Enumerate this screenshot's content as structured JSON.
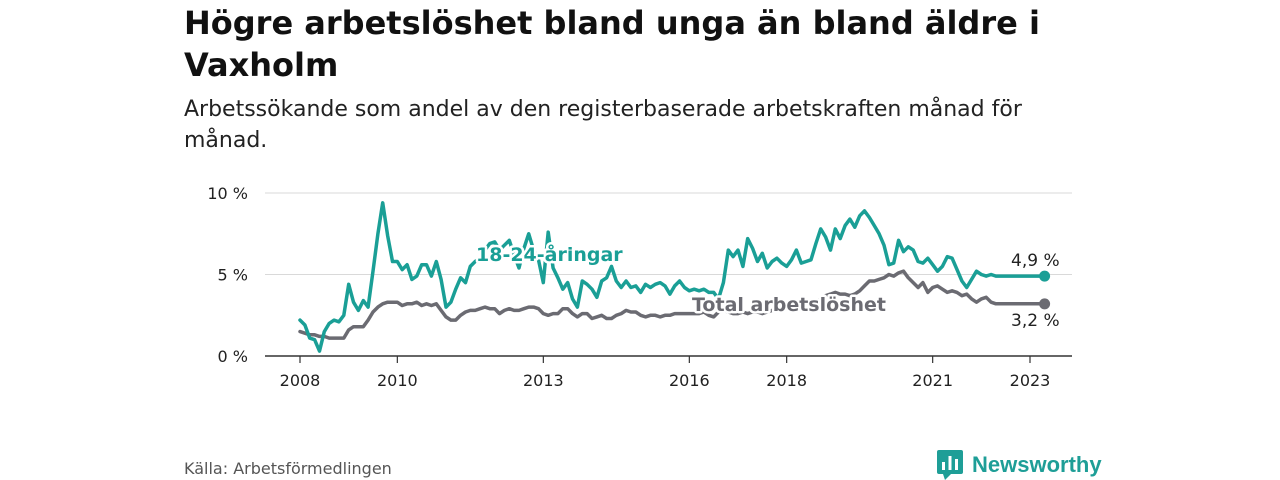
{
  "title": "Högre arbetslöshet bland unga än bland äldre i Vaxholm",
  "subtitle": "Arbetssökande som andel av den registerbaserade arbetskraften månad för månad.",
  "source": "Källa: Arbetsförmedlingen",
  "brand": {
    "name": "Newsworthy",
    "color": "#1e9e97"
  },
  "colors": {
    "youth": "#1a9f96",
    "total": "#6b6b72",
    "grid": "#d9d9d9",
    "axis": "#333333"
  },
  "chart_data": {
    "type": "line",
    "title": "Högre arbetslöshet bland unga än bland äldre i Vaxholm",
    "xlabel": "",
    "ylabel": "",
    "xlim": [
      2008.0,
      2024.0
    ],
    "ylim": [
      0,
      10
    ],
    "yticks": [
      0,
      5,
      10
    ],
    "ytick_labels": [
      "0 %",
      "5 %",
      "10 %"
    ],
    "xticks": [
      2008,
      2010,
      2013,
      2016,
      2018,
      2021,
      2023
    ],
    "xtick_labels": [
      "2008",
      "2010",
      "2013",
      "2016",
      "2018",
      "2021",
      "2023"
    ],
    "grid": true,
    "series": [
      {
        "name": "18-24-åringar",
        "label": "18-24-åringar",
        "end_label": "4,9 %",
        "color": "#1a9f96",
        "x": [
          2008.0,
          2008.1,
          2008.2,
          2008.3,
          2008.4,
          2008.5,
          2008.6,
          2008.7,
          2008.8,
          2008.9,
          2009.0,
          2009.1,
          2009.2,
          2009.3,
          2009.4,
          2009.5,
          2009.6,
          2009.7,
          2009.8,
          2009.9,
          2010.0,
          2010.1,
          2010.2,
          2010.3,
          2010.4,
          2010.5,
          2010.6,
          2010.7,
          2010.8,
          2010.9,
          2011.0,
          2011.1,
          2011.2,
          2011.3,
          2011.4,
          2011.5,
          2011.6,
          2011.7,
          2011.8,
          2011.9,
          2012.0,
          2012.1,
          2012.2,
          2012.3,
          2012.4,
          2012.5,
          2012.6,
          2012.7,
          2012.8,
          2012.9,
          2013.0,
          2013.1,
          2013.2,
          2013.3,
          2013.4,
          2013.5,
          2013.6,
          2013.7,
          2013.8,
          2013.9,
          2014.0,
          2014.1,
          2014.2,
          2014.3,
          2014.4,
          2014.5,
          2014.6,
          2014.7,
          2014.8,
          2014.9,
          2015.0,
          2015.1,
          2015.2,
          2015.3,
          2015.4,
          2015.5,
          2015.6,
          2015.7,
          2015.8,
          2015.9,
          2016.0,
          2016.1,
          2016.2,
          2016.3,
          2016.4,
          2016.5,
          2016.6,
          2016.7,
          2016.8,
          2016.9,
          2017.0,
          2017.1,
          2017.2,
          2017.3,
          2017.4,
          2017.5,
          2017.6,
          2017.7,
          2017.8,
          2017.9,
          2018.0,
          2018.1,
          2018.2,
          2018.3,
          2018.4,
          2018.5,
          2018.6,
          2018.7,
          2018.8,
          2018.9,
          2019.0,
          2019.1,
          2019.2,
          2019.3,
          2019.4,
          2019.5,
          2019.6,
          2019.7,
          2019.8,
          2019.9,
          2020.0,
          2020.1,
          2020.2,
          2020.3,
          2020.4,
          2020.5,
          2020.6,
          2020.7,
          2020.8,
          2020.9,
          2021.0,
          2021.1,
          2021.2,
          2021.3,
          2021.4,
          2021.5,
          2021.6,
          2021.7,
          2021.8,
          2021.9,
          2022.0,
          2022.1,
          2022.2,
          2022.3,
          2022.4,
          2022.5,
          2022.6,
          2022.7,
          2022.8,
          2022.9,
          2023.0,
          2023.1,
          2023.2,
          2023.3
        ],
        "values": [
          2.2,
          1.9,
          1.1,
          1.0,
          0.3,
          1.5,
          2.0,
          2.2,
          2.1,
          2.5,
          4.4,
          3.3,
          2.8,
          3.4,
          3.0,
          5.2,
          7.5,
          9.4,
          7.4,
          5.8,
          5.8,
          5.3,
          5.6,
          4.7,
          4.9,
          5.6,
          5.6,
          4.9,
          5.8,
          4.7,
          3.0,
          3.3,
          4.1,
          4.8,
          4.5,
          5.5,
          5.8,
          6.0,
          6.5,
          6.9,
          7.0,
          6.5,
          6.8,
          7.1,
          6.2,
          5.4,
          6.6,
          7.5,
          6.5,
          5.9,
          4.5,
          7.6,
          5.4,
          4.8,
          4.1,
          4.5,
          3.5,
          3.0,
          4.6,
          4.4,
          4.1,
          3.6,
          4.6,
          4.8,
          5.5,
          4.6,
          4.2,
          4.6,
          4.2,
          4.3,
          3.9,
          4.4,
          4.2,
          4.4,
          4.5,
          4.3,
          3.8,
          4.3,
          4.6,
          4.2,
          4.0,
          4.1,
          4.0,
          4.1,
          3.9,
          3.9,
          3.5,
          4.5,
          6.5,
          6.1,
          6.5,
          5.5,
          7.2,
          6.6,
          5.8,
          6.3,
          5.4,
          5.8,
          6.0,
          5.7,
          5.5,
          5.9,
          6.5,
          5.7,
          5.8,
          5.9,
          6.9,
          7.8,
          7.3,
          6.5,
          7.8,
          7.2,
          8.0,
          8.4,
          7.9,
          8.6,
          8.9,
          8.5,
          8.0,
          7.5,
          6.8,
          5.6,
          5.7,
          7.1,
          6.4,
          6.7,
          6.5,
          5.8,
          5.7,
          6.0,
          5.6,
          5.2,
          5.5,
          6.1,
          6.0,
          5.3,
          4.6,
          4.2,
          4.7,
          5.2,
          5.0,
          4.9,
          5.0,
          4.9,
          4.9,
          4.9,
          4.9,
          4.9,
          4.9,
          4.9,
          4.9,
          4.9,
          4.9,
          4.9
        ]
      },
      {
        "name": "Total arbetslöshet",
        "label": "Total arbetslöshet",
        "end_label": "3,2 %",
        "color": "#6b6b72",
        "x": [
          2008.0,
          2008.1,
          2008.2,
          2008.3,
          2008.4,
          2008.5,
          2008.6,
          2008.7,
          2008.8,
          2008.9,
          2009.0,
          2009.1,
          2009.2,
          2009.3,
          2009.4,
          2009.5,
          2009.6,
          2009.7,
          2009.8,
          2009.9,
          2010.0,
          2010.1,
          2010.2,
          2010.3,
          2010.4,
          2010.5,
          2010.6,
          2010.7,
          2010.8,
          2010.9,
          2011.0,
          2011.1,
          2011.2,
          2011.3,
          2011.4,
          2011.5,
          2011.6,
          2011.7,
          2011.8,
          2011.9,
          2012.0,
          2012.1,
          2012.2,
          2012.3,
          2012.4,
          2012.5,
          2012.6,
          2012.7,
          2012.8,
          2012.9,
          2013.0,
          2013.1,
          2013.2,
          2013.3,
          2013.4,
          2013.5,
          2013.6,
          2013.7,
          2013.8,
          2013.9,
          2014.0,
          2014.1,
          2014.2,
          2014.3,
          2014.4,
          2014.5,
          2014.6,
          2014.7,
          2014.8,
          2014.9,
          2015.0,
          2015.1,
          2015.2,
          2015.3,
          2015.4,
          2015.5,
          2015.6,
          2015.7,
          2015.8,
          2015.9,
          2016.0,
          2016.1,
          2016.2,
          2016.3,
          2016.4,
          2016.5,
          2016.6,
          2016.7,
          2016.8,
          2016.9,
          2017.0,
          2017.1,
          2017.2,
          2017.3,
          2017.4,
          2017.5,
          2017.6,
          2017.7,
          2017.8,
          2017.9,
          2018.0,
          2018.1,
          2018.2,
          2018.3,
          2018.4,
          2018.5,
          2018.6,
          2018.7,
          2018.8,
          2018.9,
          2019.0,
          2019.1,
          2019.2,
          2019.3,
          2019.4,
          2019.5,
          2019.6,
          2019.7,
          2019.8,
          2019.9,
          2020.0,
          2020.1,
          2020.2,
          2020.3,
          2020.4,
          2020.5,
          2020.6,
          2020.7,
          2020.8,
          2020.9,
          2021.0,
          2021.1,
          2021.2,
          2021.3,
          2021.4,
          2021.5,
          2021.6,
          2021.7,
          2021.8,
          2021.9,
          2022.0,
          2022.1,
          2022.2,
          2022.3,
          2022.4,
          2022.5,
          2022.6,
          2022.7,
          2022.8,
          2022.9,
          2023.0,
          2023.1,
          2023.2,
          2023.3
        ],
        "values": [
          1.5,
          1.4,
          1.3,
          1.3,
          1.2,
          1.2,
          1.1,
          1.1,
          1.1,
          1.1,
          1.6,
          1.8,
          1.8,
          1.8,
          2.2,
          2.7,
          3.0,
          3.2,
          3.3,
          3.3,
          3.3,
          3.1,
          3.2,
          3.2,
          3.3,
          3.1,
          3.2,
          3.1,
          3.2,
          2.8,
          2.4,
          2.2,
          2.2,
          2.5,
          2.7,
          2.8,
          2.8,
          2.9,
          3.0,
          2.9,
          2.9,
          2.6,
          2.8,
          2.9,
          2.8,
          2.8,
          2.9,
          3.0,
          3.0,
          2.9,
          2.6,
          2.5,
          2.6,
          2.6,
          2.9,
          2.9,
          2.6,
          2.4,
          2.6,
          2.6,
          2.3,
          2.4,
          2.5,
          2.3,
          2.3,
          2.5,
          2.6,
          2.8,
          2.7,
          2.7,
          2.5,
          2.4,
          2.5,
          2.5,
          2.4,
          2.5,
          2.5,
          2.6,
          2.6,
          2.6,
          2.6,
          2.6,
          2.6,
          2.7,
          2.5,
          2.4,
          2.7,
          2.8,
          2.7,
          2.6,
          2.6,
          2.7,
          2.6,
          2.7,
          2.7,
          2.6,
          2.7,
          2.8,
          2.9,
          3.0,
          3.0,
          3.0,
          3.1,
          3.1,
          3.2,
          3.2,
          3.3,
          3.5,
          3.7,
          3.8,
          3.9,
          3.8,
          3.8,
          3.7,
          3.8,
          4.0,
          4.3,
          4.6,
          4.6,
          4.7,
          4.8,
          5.0,
          4.9,
          5.1,
          5.2,
          4.8,
          4.5,
          4.2,
          4.5,
          3.9,
          4.2,
          4.3,
          4.1,
          3.9,
          4.0,
          3.9,
          3.7,
          3.8,
          3.5,
          3.3,
          3.5,
          3.6,
          3.3,
          3.2,
          3.2,
          3.2,
          3.2,
          3.2,
          3.2,
          3.2,
          3.2,
          3.2,
          3.2,
          3.2
        ]
      }
    ]
  }
}
